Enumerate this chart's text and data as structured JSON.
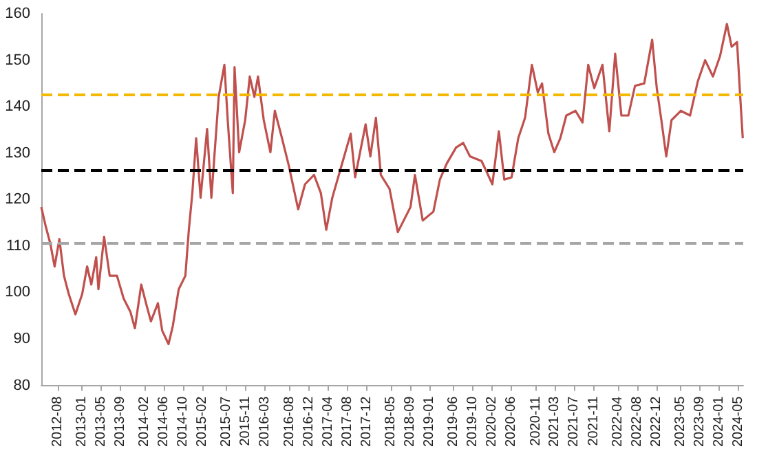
{
  "chart_data": {
    "type": "line",
    "color": "#c0504d",
    "marker": "none",
    "line_style": "solid",
    "x": [
      "2012-04-20",
      "2012-05-16",
      "2012-06-16",
      "2012-07-13",
      "2012-08-12",
      "2012-09-10",
      "2012-10-10",
      "2012-11-21",
      "2013-01-03",
      "2013-02-03",
      "2013-03-01",
      "2013-04-01",
      "2013-04-15",
      "2013-05-21",
      "2013-06-25",
      "2013-08-10",
      "2013-09-21",
      "2013-11-03",
      "2013-12-01",
      "2014-01-10",
      "2014-02-12",
      "2014-03-12",
      "2014-04-25",
      "2014-05-22",
      "2014-07-01",
      "2014-07-28",
      "2014-09-03",
      "2014-10-15",
      "2014-11-06",
      "2014-11-28",
      "2014-12-22",
      "2015-01-19",
      "2015-03-01",
      "2015-03-28",
      "2015-05-13",
      "2015-06-18",
      "2015-07-09",
      "2015-08-10",
      "2015-08-21",
      "2015-09-19",
      "2015-10-27",
      "2015-11-25",
      "2015-12-24",
      "2016-01-16",
      "2016-02-21",
      "2016-04-03",
      "2016-05-01",
      "2016-06-15",
      "2016-07-28",
      "2016-09-25",
      "2016-11-07",
      "2017-01-03",
      "2017-02-15",
      "2017-03-21",
      "2017-04-28",
      "2017-06-25",
      "2017-08-22",
      "2017-09-19",
      "2017-11-24",
      "2017-12-24",
      "2018-01-28",
      "2018-02-28",
      "2018-04-24",
      "2018-06-15",
      "2018-09-03",
      "2018-10-01",
      "2018-11-19",
      "2019-01-25",
      "2019-03-07",
      "2019-04-20",
      "2019-06-17",
      "2019-08-01",
      "2019-09-13",
      "2019-11-25",
      "2020-02-01",
      "2020-03-13",
      "2020-04-16",
      "2020-06-01",
      "2020-07-13",
      "2020-08-25",
      "2020-10-07",
      "2020-11-13",
      "2020-12-10",
      "2021-01-19",
      "2021-02-25",
      "2021-04-04",
      "2021-05-12",
      "2021-07-09",
      "2021-08-22",
      "2021-09-27",
      "2021-11-04",
      "2021-12-26",
      "2022-02-07",
      "2022-03-16",
      "2022-04-24",
      "2022-06-07",
      "2022-07-19",
      "2022-09-15",
      "2022-11-04",
      "2022-12-03",
      "2023-01-01",
      "2023-02-01",
      "2023-03-06",
      "2023-05-04",
      "2023-07-01",
      "2023-08-19",
      "2023-10-04",
      "2023-11-22",
      "2024-01-06",
      "2024-02-18",
      "2024-03-19",
      "2024-04-22",
      "2024-05-12",
      "2024-05-28"
    ],
    "values": [
      118.4,
      114.5,
      110.5,
      105.6,
      111.5,
      103.6,
      99.7,
      95.3,
      99.7,
      105.6,
      101.7,
      107.6,
      100.7,
      112,
      103.6,
      103.6,
      98.7,
      95.8,
      92.3,
      101.7,
      97.3,
      93.8,
      97.7,
      91.8,
      88.9,
      92.8,
      100.7,
      103.6,
      113.5,
      121.4,
      133.2,
      120.4,
      135.2,
      120.4,
      142.1,
      149,
      137.1,
      121.4,
      148.5,
      130.2,
      137.1,
      146.5,
      142.1,
      146.5,
      137.1,
      130.2,
      139.1,
      133.2,
      127.3,
      117.9,
      123.3,
      125.3,
      121.4,
      113.5,
      120.4,
      127.3,
      134.2,
      124.8,
      136.2,
      129.3,
      137.6,
      125.3,
      122.3,
      113,
      118.4,
      125.3,
      115.5,
      117.4,
      124.3,
      127.8,
      131.2,
      132.2,
      129.3,
      128.3,
      123.3,
      134.7,
      124.3,
      124.8,
      133.2,
      137.6,
      149,
      143.1,
      145,
      134.2,
      130.2,
      133.2,
      138.1,
      139.1,
      136.6,
      149,
      144,
      149,
      134.7,
      151.4,
      138.1,
      138.1,
      144.5,
      145,
      154.4,
      144,
      137.1,
      129.3,
      137.1,
      139.1,
      138.1,
      145.5,
      150,
      146.5,
      150.9,
      157.8,
      152.9,
      153.9,
      142.1,
      133.2
    ],
    "xlim": [
      "2012-04-20",
      "2024-05-31"
    ],
    "xticks": [
      "2012-08",
      "2013-01",
      "2013-05",
      "2013-09",
      "2014-02",
      "2014-06",
      "2014-10",
      "2015-02",
      "2015-07",
      "2015-11",
      "2016-03",
      "2016-08",
      "2016-12",
      "2017-04",
      "2017-08",
      "2017-12",
      "2018-05",
      "2018-09",
      "2019-01",
      "2019-06",
      "2019-10",
      "2020-02",
      "2020-06",
      "2020-11",
      "2021-03",
      "2021-07",
      "2021-11",
      "2022-04",
      "2022-08",
      "2022-12",
      "2023-05",
      "2023-09",
      "2024-01",
      "2024-05"
    ],
    "ylim": [
      80,
      160
    ],
    "yticks": [
      80,
      90,
      100,
      110,
      120,
      130,
      140,
      150,
      160
    ],
    "ref_lines": [
      {
        "axis": "y",
        "value": 142.6,
        "color": "#f5b800",
        "line_style": "dashed"
      },
      {
        "axis": "y",
        "value": 126.4,
        "color": "#000000",
        "line_style": "dashed"
      },
      {
        "axis": "y",
        "value": 110.5,
        "color": "#a6a6a6",
        "line_style": "dashed"
      }
    ]
  }
}
